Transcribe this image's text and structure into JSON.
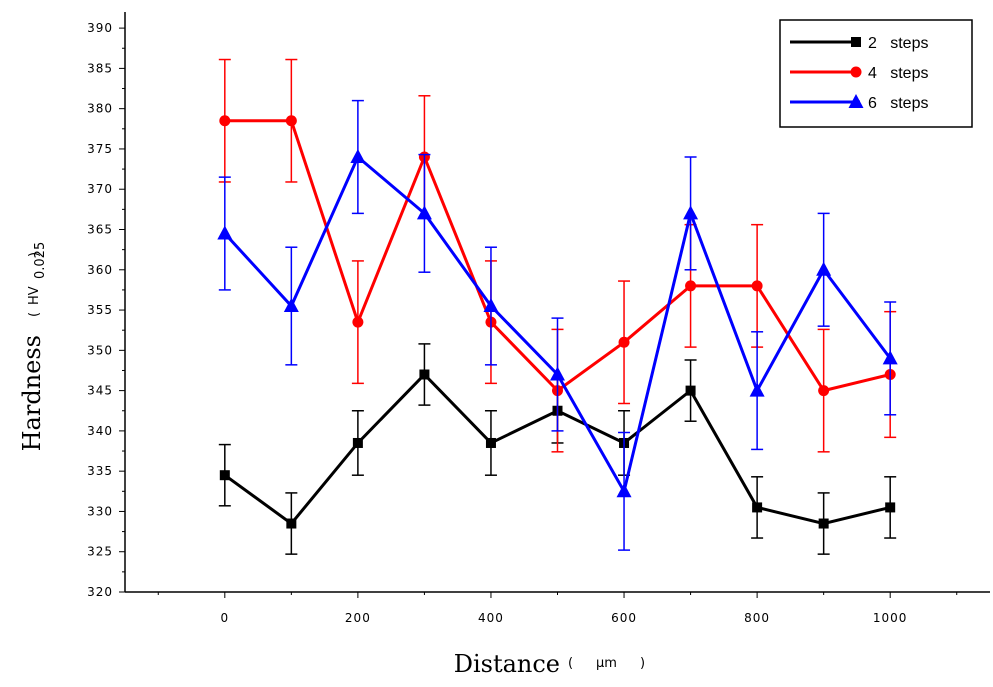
{
  "chart_data": {
    "type": "line",
    "xlabel": "Distance",
    "xlabel_unit": "μm",
    "ylabel": "Hardness",
    "ylabel_unit": "HV",
    "ylabel_unit_subscript": "0.025",
    "xlim": [
      -150,
      1150
    ],
    "ylim": [
      320,
      392
    ],
    "x_ticks": [
      0,
      200,
      400,
      600,
      800,
      1000
    ],
    "y_ticks": [
      320,
      325,
      330,
      335,
      340,
      345,
      350,
      355,
      360,
      365,
      370,
      375,
      380,
      385,
      390
    ],
    "grid": false,
    "legend_position": "top-right",
    "x": [
      0,
      100,
      200,
      300,
      400,
      500,
      600,
      700,
      800,
      900,
      1000
    ],
    "series": [
      {
        "name": "2   steps",
        "color": "#000000",
        "marker": "square",
        "values": [
          334.5,
          328.5,
          338.5,
          347,
          338.5,
          342.5,
          338.5,
          345,
          330.5,
          328.5,
          330.5
        ],
        "errors": [
          3.8,
          3.8,
          4,
          3.8,
          4,
          4,
          4,
          3.8,
          3.8,
          3.8,
          3.8
        ]
      },
      {
        "name": "4   steps",
        "color": "#ff0000",
        "marker": "circle",
        "values": [
          378.5,
          378.5,
          353.5,
          374,
          353.5,
          345,
          351,
          358,
          358,
          345,
          347
        ],
        "errors": [
          7.6,
          7.6,
          7.6,
          7.6,
          7.6,
          7.6,
          7.6,
          7.6,
          7.6,
          7.6,
          7.8
        ]
      },
      {
        "name": "6   steps",
        "color": "#0000ff",
        "marker": "triangle",
        "values": [
          364.5,
          355.5,
          374,
          367,
          355.5,
          347,
          332.5,
          367,
          345,
          360,
          349
        ],
        "errors": [
          7,
          7.3,
          7,
          7.3,
          7.3,
          7,
          7.3,
          7,
          7.3,
          7,
          7
        ]
      }
    ]
  }
}
